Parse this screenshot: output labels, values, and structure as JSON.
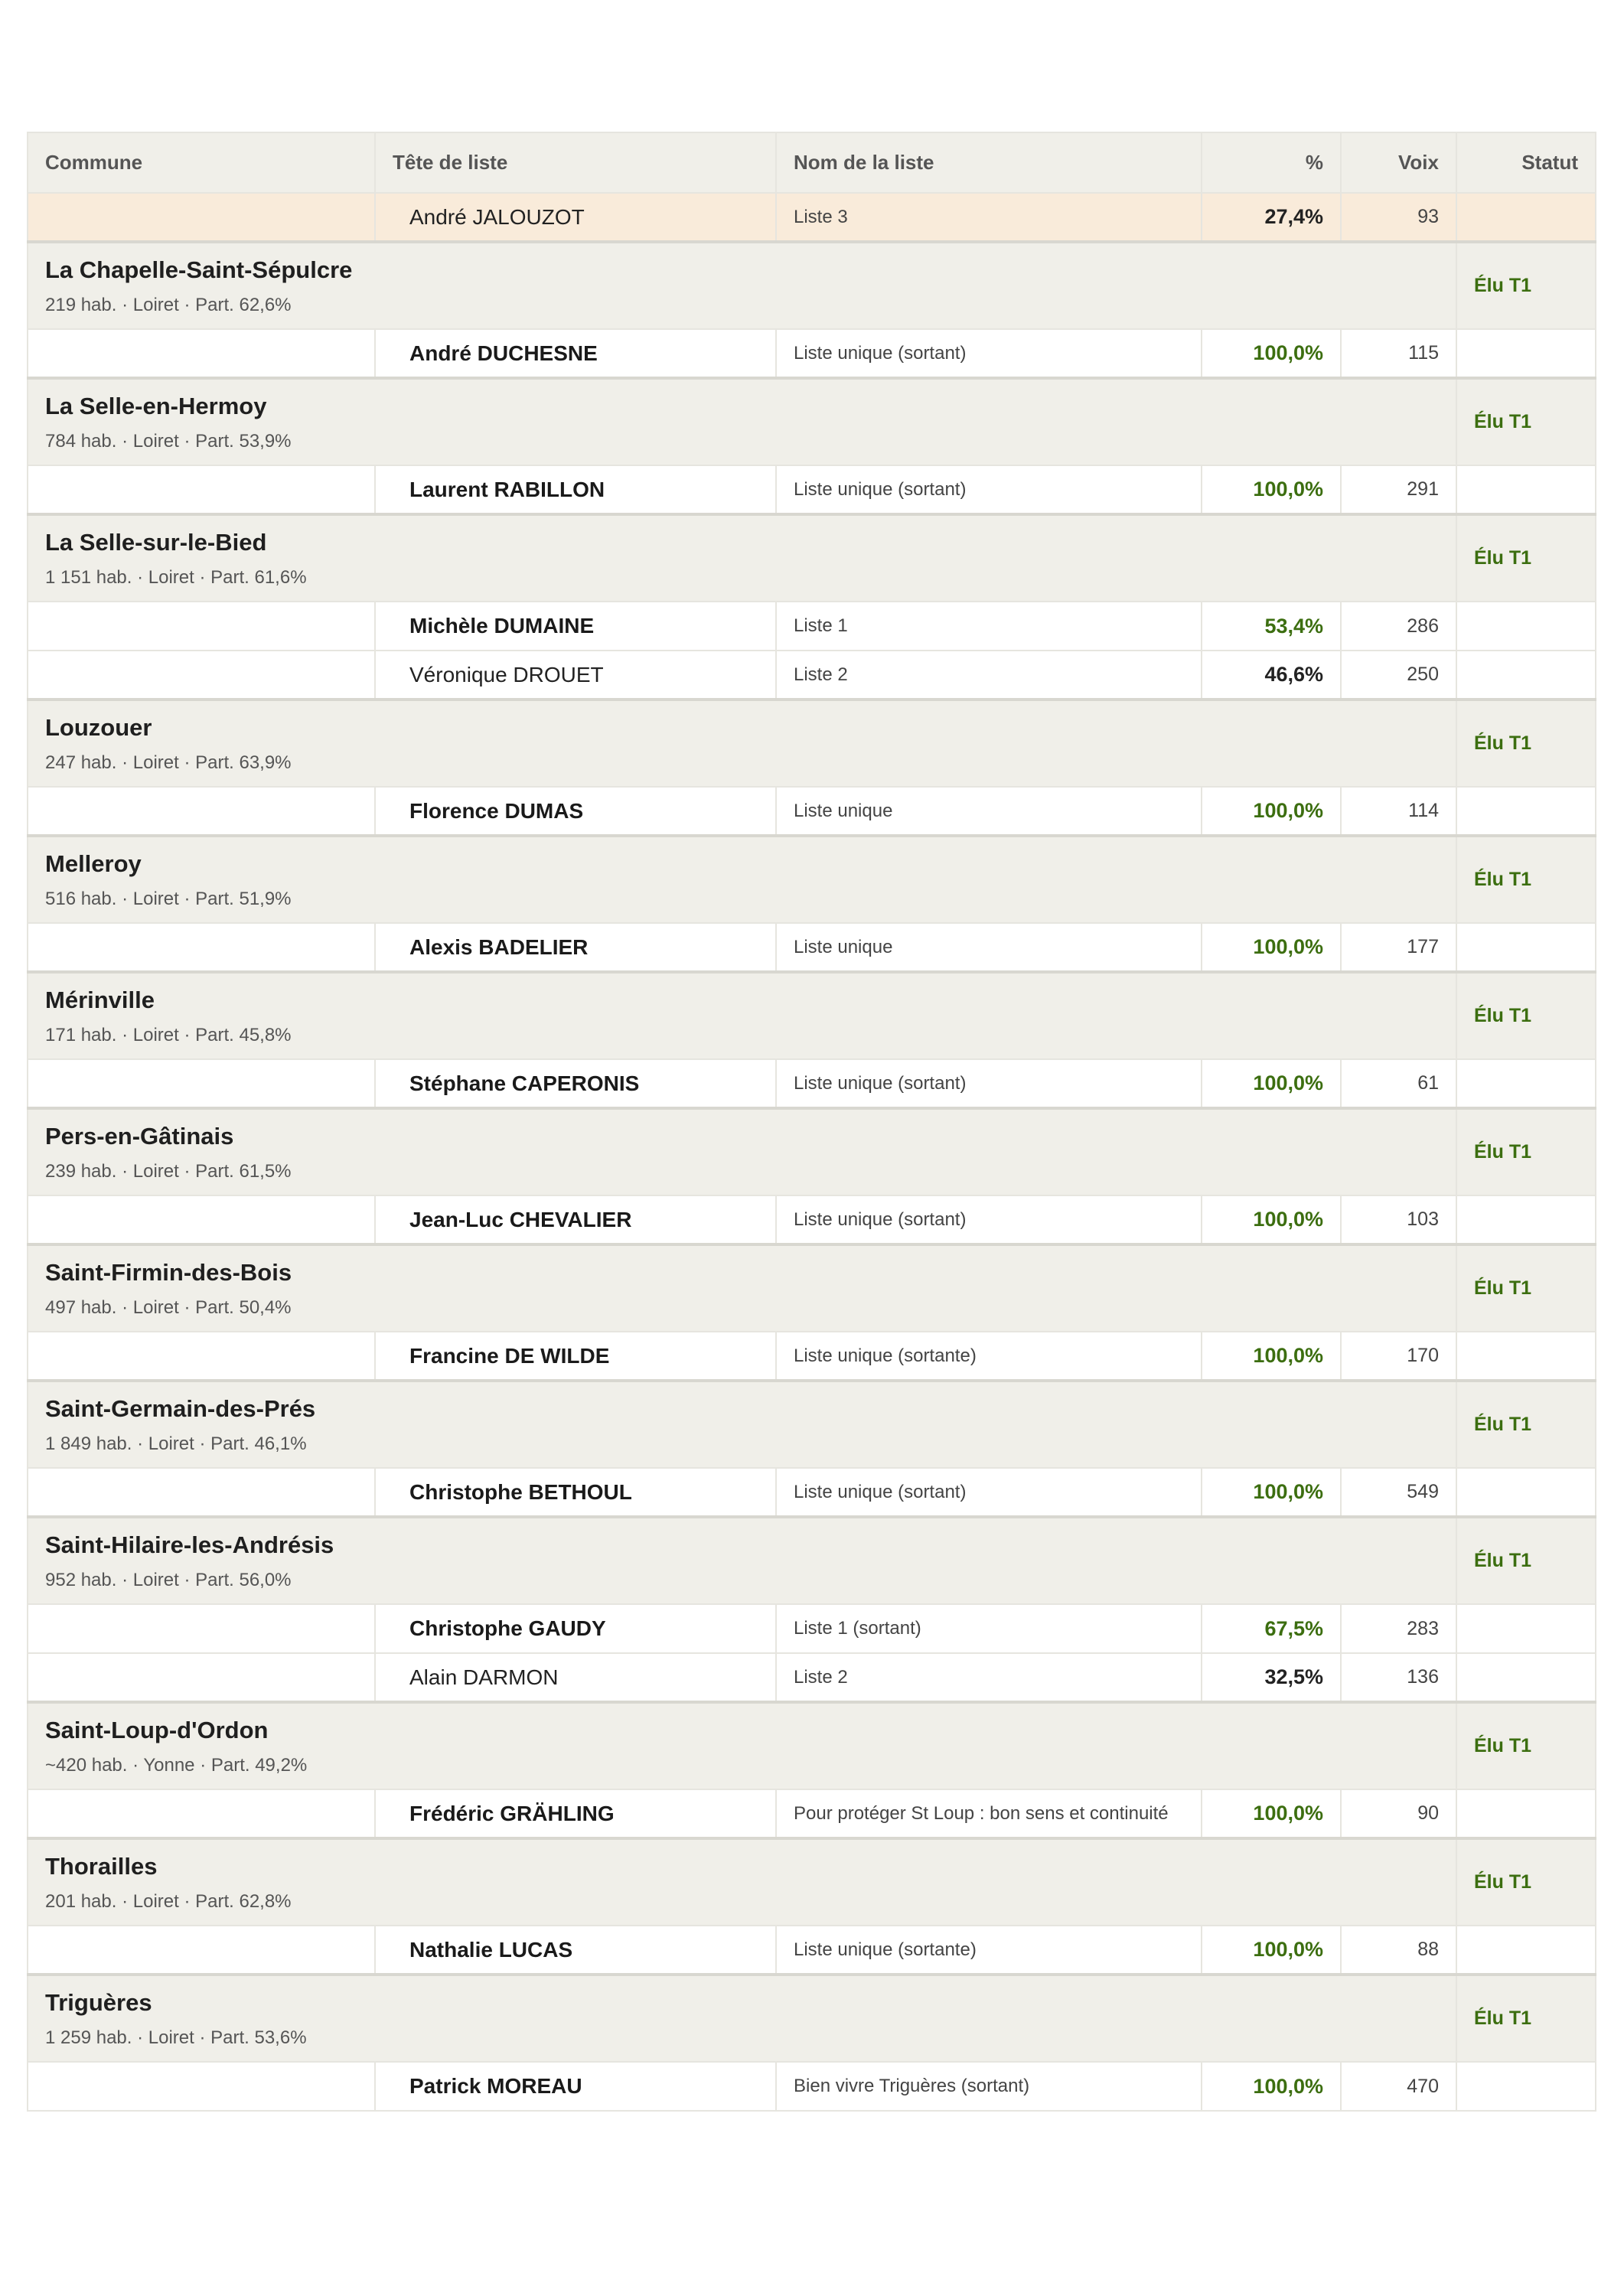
{
  "columns": [
    "Commune",
    "Tête de liste",
    "Nom de la liste",
    "%",
    "Voix",
    "Statut"
  ],
  "colors": {
    "win": "#3c6e10",
    "highlight_row": "#f9ebda",
    "commune_row": "#f0efe9"
  },
  "leading_row": {
    "name": "André JALOUZOT",
    "list": "Liste 3",
    "pct": "27,4%",
    "votes": "93",
    "winner": false
  },
  "communes": [
    {
      "name": "La Chapelle-Saint-Sépulcre",
      "meta": "219 hab. · Loiret · Part. 62,6%",
      "status": "Élu T1",
      "candidates": [
        {
          "name": "André DUCHESNE",
          "list": "Liste unique (sortant)",
          "pct": "100,0%",
          "votes": "115",
          "winner": true
        }
      ]
    },
    {
      "name": "La Selle-en-Hermoy",
      "meta": "784 hab. · Loiret · Part. 53,9%",
      "status": "Élu T1",
      "candidates": [
        {
          "name": "Laurent RABILLON",
          "list": "Liste unique (sortant)",
          "pct": "100,0%",
          "votes": "291",
          "winner": true
        }
      ]
    },
    {
      "name": "La Selle-sur-le-Bied",
      "meta": "1 151 hab. · Loiret · Part. 61,6%",
      "status": "Élu T1",
      "candidates": [
        {
          "name": "Michèle DUMAINE",
          "list": "Liste 1",
          "pct": "53,4%",
          "votes": "286",
          "winner": true
        },
        {
          "name": "Véronique DROUET",
          "list": "Liste 2",
          "pct": "46,6%",
          "votes": "250",
          "winner": false
        }
      ]
    },
    {
      "name": "Louzouer",
      "meta": "247 hab. · Loiret · Part. 63,9%",
      "status": "Élu T1",
      "candidates": [
        {
          "name": "Florence DUMAS",
          "list": "Liste unique",
          "pct": "100,0%",
          "votes": "114",
          "winner": true
        }
      ]
    },
    {
      "name": "Melleroy",
      "meta": "516 hab. · Loiret · Part. 51,9%",
      "status": "Élu T1",
      "candidates": [
        {
          "name": "Alexis BADELIER",
          "list": "Liste unique",
          "pct": "100,0%",
          "votes": "177",
          "winner": true
        }
      ]
    },
    {
      "name": "Mérinville",
      "meta": "171 hab. · Loiret · Part. 45,8%",
      "status": "Élu T1",
      "candidates": [
        {
          "name": "Stéphane CAPERONIS",
          "list": "Liste unique (sortant)",
          "pct": "100,0%",
          "votes": "61",
          "winner": true
        }
      ]
    },
    {
      "name": "Pers-en-Gâtinais",
      "meta": "239 hab. · Loiret · Part. 61,5%",
      "status": "Élu T1",
      "candidates": [
        {
          "name": "Jean-Luc CHEVALIER",
          "list": "Liste unique (sortant)",
          "pct": "100,0%",
          "votes": "103",
          "winner": true
        }
      ]
    },
    {
      "name": "Saint-Firmin-des-Bois",
      "meta": "497 hab. · Loiret · Part. 50,4%",
      "status": "Élu T1",
      "candidates": [
        {
          "name": "Francine DE WILDE",
          "list": "Liste unique (sortante)",
          "pct": "100,0%",
          "votes": "170",
          "winner": true
        }
      ]
    },
    {
      "name": "Saint-Germain-des-Prés",
      "meta": "1 849 hab. · Loiret · Part. 46,1%",
      "status": "Élu T1",
      "candidates": [
        {
          "name": "Christophe BETHOUL",
          "list": "Liste unique (sortant)",
          "pct": "100,0%",
          "votes": "549",
          "winner": true
        }
      ]
    },
    {
      "name": "Saint-Hilaire-les-Andrésis",
      "meta": "952 hab. · Loiret · Part. 56,0%",
      "status": "Élu T1",
      "candidates": [
        {
          "name": "Christophe GAUDY",
          "list": "Liste 1 (sortant)",
          "pct": "67,5%",
          "votes": "283",
          "winner": true
        },
        {
          "name": "Alain DARMON",
          "list": "Liste 2",
          "pct": "32,5%",
          "votes": "136",
          "winner": false
        }
      ]
    },
    {
      "name": "Saint-Loup-d'Ordon",
      "meta": "~420 hab. · Yonne · Part. 49,2%",
      "status": "Élu T1",
      "candidates": [
        {
          "name": "Frédéric GRÄHLING",
          "list": "Pour protéger St Loup : bon sens et continuité",
          "pct": "100,0%",
          "votes": "90",
          "winner": true
        }
      ]
    },
    {
      "name": "Thorailles",
      "meta": "201 hab. · Loiret · Part. 62,8%",
      "status": "Élu T1",
      "candidates": [
        {
          "name": "Nathalie LUCAS",
          "list": "Liste unique (sortante)",
          "pct": "100,0%",
          "votes": "88",
          "winner": true
        }
      ]
    },
    {
      "name": "Triguères",
      "meta": "1 259 hab. · Loiret · Part. 53,6%",
      "status": "Élu T1",
      "candidates": [
        {
          "name": "Patrick MOREAU",
          "list": "Bien vivre Triguères (sortant)",
          "pct": "100,0%",
          "votes": "470",
          "winner": true
        }
      ]
    }
  ]
}
